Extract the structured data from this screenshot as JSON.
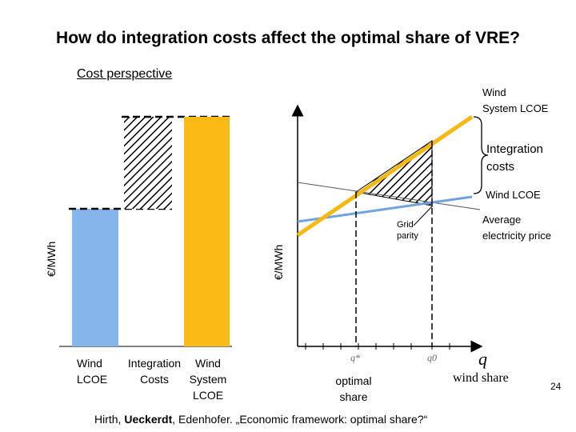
{
  "title": "How do integration costs affect the optimal share of VRE?",
  "subtitle": "Cost perspective",
  "left_chart": {
    "ylabel": "€/MWh",
    "bars": [
      {
        "label_lines": [
          "Wind",
          "LCOE"
        ],
        "color": "#85b5ea"
      },
      {
        "label_lines": [
          "Integration",
          "Costs"
        ],
        "pattern": "hatched"
      },
      {
        "label_lines": [
          "Wind",
          "System",
          "LCOE"
        ],
        "color": "#fbbb13"
      }
    ]
  },
  "right_chart": {
    "ylabel": "€/MWh",
    "xlabel": "wind share",
    "x_symbol": "q",
    "q_star": "q*",
    "q0": "q0",
    "optimal_share": [
      "optimal",
      "share"
    ],
    "grid_parity": [
      "Grid",
      "parity"
    ],
    "average_price": [
      "Average",
      "electricity price"
    ],
    "wind_system_lcoe": [
      "Wind",
      "System LCOE"
    ],
    "integration_costs": [
      "Integration",
      "costs"
    ],
    "wind_lcoe": "Wind LCOE",
    "colors": {
      "system_lcoe": "#f5b914",
      "wind_lcoe": "#6fa3dd"
    }
  },
  "citation": {
    "before": "Hirth, ",
    "bold": "Ueckerdt",
    "after": ", Edenhofer. „Economic framework: optimal share?“"
  },
  "page_number": "24"
}
